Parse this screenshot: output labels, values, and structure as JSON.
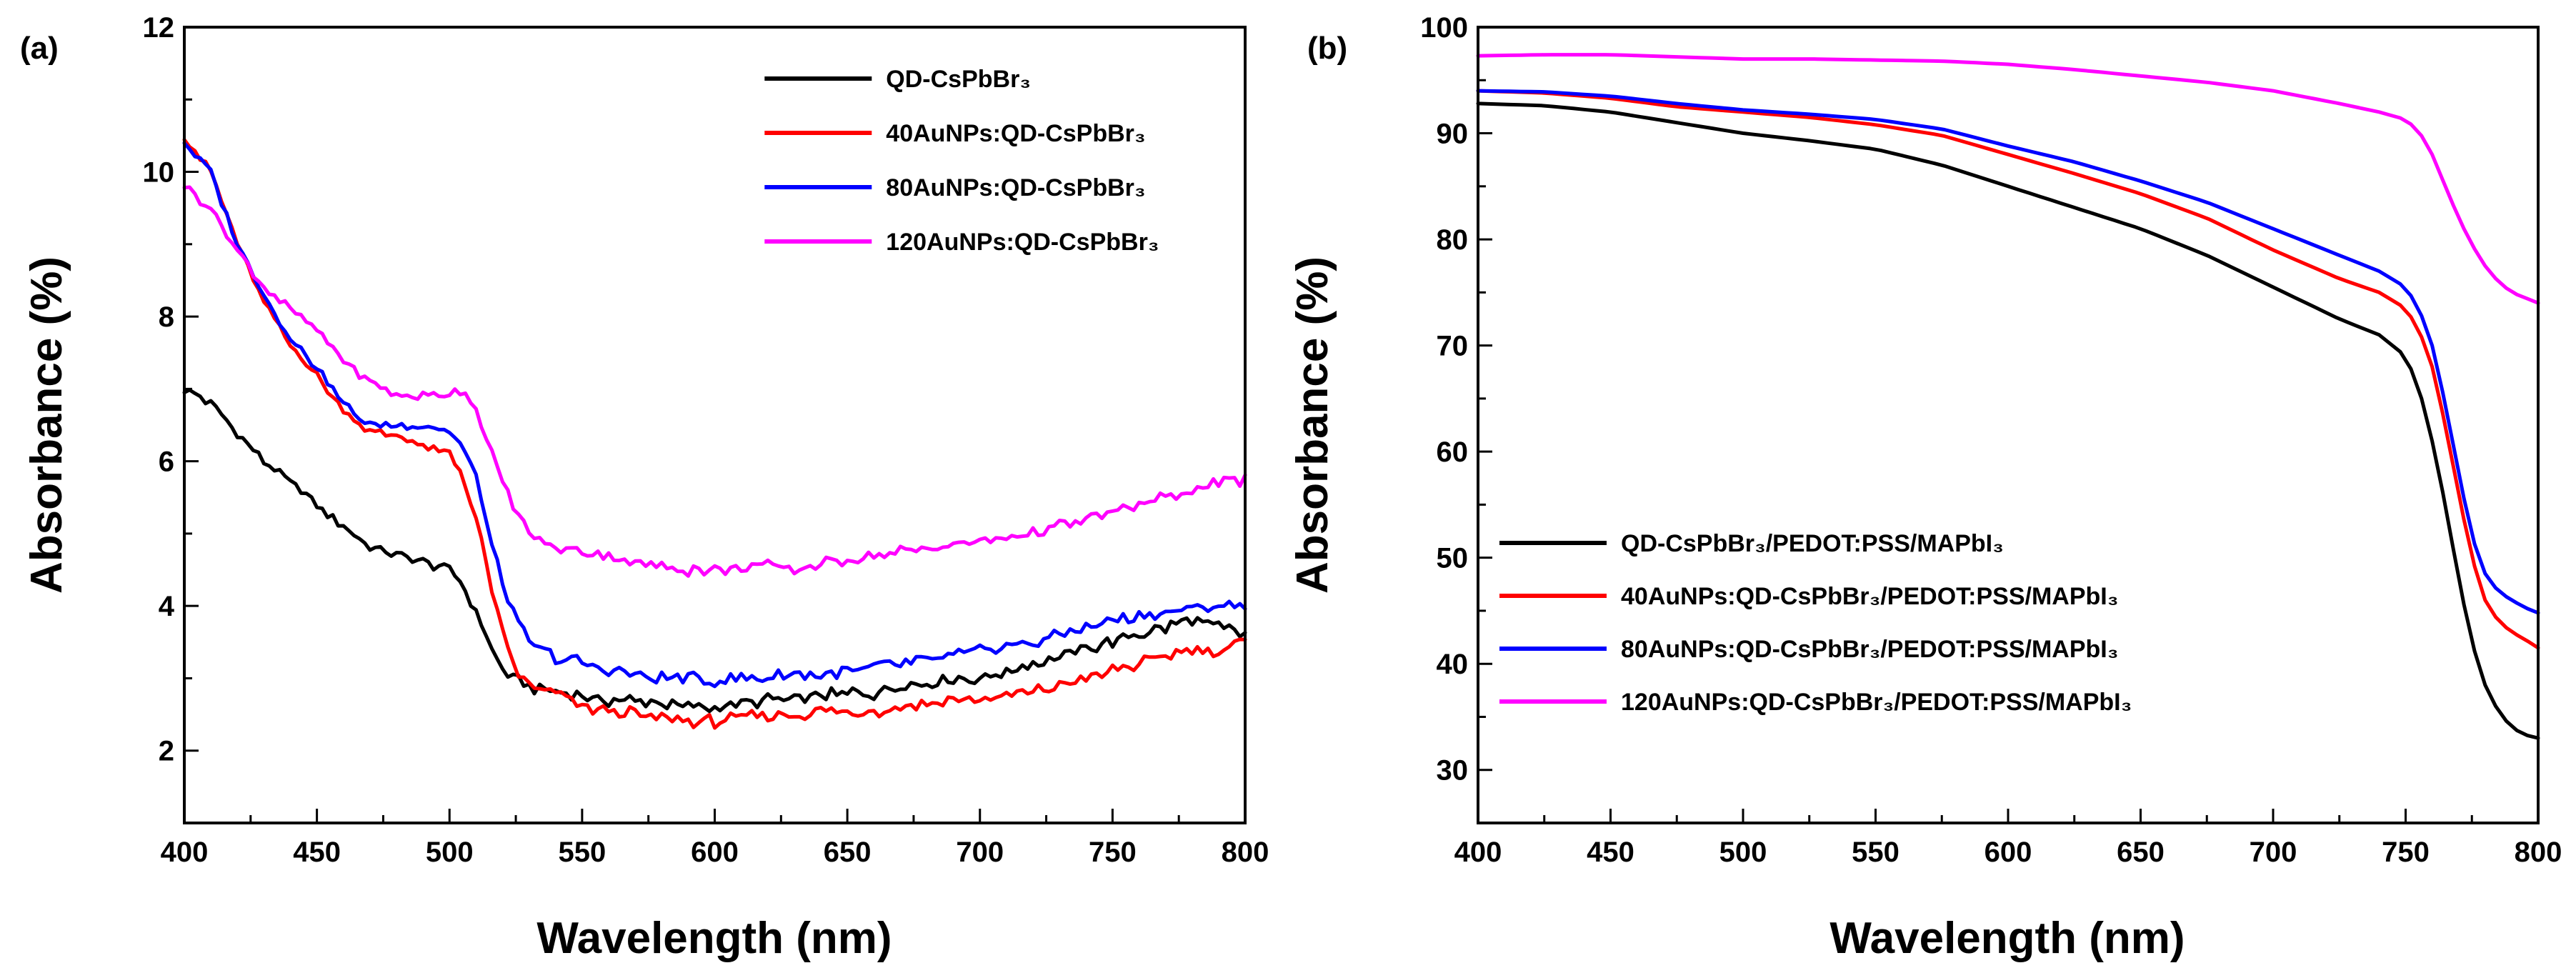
{
  "chart_data": [
    {
      "panel": "(a)",
      "type": "line",
      "xlabel": "Wavelength (nm)",
      "ylabel": "Absorbance (%)",
      "xlim": [
        400,
        800
      ],
      "ylim": [
        1,
        12
      ],
      "xticks": [
        400,
        450,
        500,
        550,
        600,
        650,
        700,
        750,
        800
      ],
      "yticks": [
        2,
        4,
        6,
        8,
        10,
        12
      ],
      "legend_position": "top-right",
      "series": [
        {
          "name": "QD-CsPbBr₃",
          "color": "#000000",
          "x": [
            400,
            410,
            420,
            430,
            440,
            450,
            460,
            470,
            480,
            490,
            500,
            505,
            510,
            515,
            520,
            525,
            530,
            540,
            550,
            560,
            570,
            580,
            590,
            600,
            610,
            620,
            630,
            640,
            650,
            660,
            670,
            680,
            690,
            700,
            710,
            720,
            730,
            740,
            750,
            760,
            770,
            780,
            790,
            800
          ],
          "y": [
            7.0,
            6.8,
            6.4,
            6.0,
            5.7,
            5.4,
            5.1,
            4.8,
            4.7,
            4.6,
            4.5,
            4.3,
            3.9,
            3.5,
            3.1,
            3.0,
            2.9,
            2.8,
            2.75,
            2.7,
            2.7,
            2.65,
            2.6,
            2.6,
            2.65,
            2.7,
            2.7,
            2.75,
            2.8,
            2.8,
            2.9,
            2.95,
            3.0,
            3.0,
            3.1,
            3.2,
            3.3,
            3.4,
            3.5,
            3.6,
            3.7,
            3.8,
            3.7,
            3.6
          ]
        },
        {
          "name": "40AuNPs:QD-CsPbBr₃",
          "color": "#ff0000",
          "x": [
            400,
            410,
            420,
            430,
            440,
            450,
            460,
            470,
            480,
            490,
            500,
            505,
            510,
            515,
            520,
            525,
            530,
            540,
            550,
            560,
            570,
            580,
            590,
            600,
            610,
            620,
            630,
            640,
            650,
            660,
            670,
            680,
            690,
            700,
            710,
            720,
            730,
            740,
            750,
            760,
            770,
            780,
            790,
            800
          ],
          "y": [
            10.5,
            10.0,
            9.0,
            8.2,
            7.6,
            7.2,
            6.7,
            6.4,
            6.35,
            6.2,
            6.1,
            5.8,
            5.2,
            4.4,
            3.6,
            3.1,
            2.9,
            2.8,
            2.6,
            2.55,
            2.5,
            2.45,
            2.4,
            2.4,
            2.45,
            2.5,
            2.5,
            2.55,
            2.5,
            2.55,
            2.6,
            2.65,
            2.7,
            2.7,
            2.75,
            2.8,
            2.9,
            3.0,
            3.1,
            3.2,
            3.3,
            3.4,
            3.4,
            3.5
          ]
        },
        {
          "name": "80AuNPs:QD-CsPbBr₃",
          "color": "#0000ff",
          "x": [
            400,
            410,
            420,
            430,
            440,
            450,
            460,
            470,
            480,
            490,
            500,
            505,
            510,
            515,
            520,
            525,
            530,
            540,
            550,
            560,
            570,
            580,
            590,
            600,
            610,
            620,
            630,
            640,
            650,
            660,
            670,
            680,
            690,
            700,
            710,
            720,
            730,
            740,
            750,
            760,
            770,
            780,
            790,
            800
          ],
          "y": [
            10.4,
            10.0,
            9.0,
            8.3,
            7.7,
            7.3,
            6.8,
            6.5,
            6.5,
            6.5,
            6.4,
            6.2,
            5.8,
            5.0,
            4.3,
            3.8,
            3.5,
            3.3,
            3.2,
            3.1,
            3.05,
            3.0,
            3.0,
            2.95,
            3.0,
            3.0,
            3.05,
            3.05,
            3.1,
            3.15,
            3.2,
            3.25,
            3.3,
            3.4,
            3.45,
            3.5,
            3.6,
            3.7,
            3.8,
            3.85,
            3.9,
            3.95,
            4.0,
            4.0
          ]
        },
        {
          "name": "120AuNPs:QD-CsPbBr₃",
          "color": "#ff00ff",
          "x": [
            400,
            410,
            420,
            430,
            440,
            450,
            460,
            470,
            480,
            490,
            500,
            505,
            510,
            515,
            520,
            525,
            530,
            540,
            550,
            560,
            570,
            580,
            590,
            600,
            610,
            620,
            630,
            640,
            650,
            660,
            670,
            680,
            690,
            700,
            710,
            720,
            730,
            740,
            750,
            760,
            770,
            780,
            790,
            800
          ],
          "y": [
            9.8,
            9.5,
            8.9,
            8.4,
            8.1,
            7.8,
            7.4,
            7.1,
            6.9,
            6.9,
            6.95,
            7.0,
            6.7,
            6.2,
            5.7,
            5.3,
            5.0,
            4.8,
            4.75,
            4.7,
            4.6,
            4.55,
            4.5,
            4.5,
            4.55,
            4.55,
            4.5,
            4.6,
            4.65,
            4.7,
            4.75,
            4.8,
            4.85,
            4.9,
            4.95,
            5.0,
            5.1,
            5.2,
            5.3,
            5.4,
            5.5,
            5.6,
            5.7,
            5.75
          ]
        }
      ]
    },
    {
      "panel": "(b)",
      "type": "line",
      "xlabel": "Wavelength (nm)",
      "ylabel": "Absorbance (%)",
      "xlim": [
        400,
        800
      ],
      "ylim": [
        25,
        100
      ],
      "xticks": [
        400,
        450,
        500,
        550,
        600,
        650,
        700,
        750,
        800
      ],
      "yticks": [
        30,
        40,
        50,
        60,
        70,
        80,
        90,
        100
      ],
      "legend_position": "bottom-left",
      "series": [
        {
          "name": "QD-CsPbBr₃/PEDOT:PSS/MAPbI₃",
          "color": "#000000",
          "x": [
            400,
            425,
            450,
            475,
            500,
            525,
            550,
            575,
            600,
            625,
            650,
            675,
            700,
            725,
            740,
            750,
            755,
            760,
            765,
            770,
            775,
            780,
            785,
            790,
            795,
            800
          ],
          "y": [
            92.8,
            92.6,
            92.0,
            91.0,
            90.0,
            89.3,
            88.5,
            87.0,
            85.0,
            83.0,
            81.0,
            78.5,
            75.5,
            72.5,
            71.0,
            69.0,
            66.0,
            61.0,
            55.0,
            48.0,
            42.0,
            38.0,
            35.5,
            34.0,
            33.3,
            33.0
          ]
        },
        {
          "name": "40AuNPs:QD-CsPbBr₃/PEDOT:PSS/MAPbI₃",
          "color": "#ff0000",
          "x": [
            400,
            425,
            450,
            475,
            500,
            525,
            550,
            575,
            600,
            625,
            650,
            675,
            700,
            725,
            740,
            750,
            755,
            760,
            765,
            770,
            775,
            780,
            785,
            790,
            795,
            800
          ],
          "y": [
            94.0,
            93.8,
            93.3,
            92.5,
            92.0,
            91.5,
            90.8,
            89.8,
            88.0,
            86.2,
            84.3,
            82.0,
            79.0,
            76.3,
            75.0,
            73.5,
            71.5,
            68.0,
            62.5,
            56.0,
            50.0,
            46.0,
            44.0,
            43.0,
            42.3,
            41.5
          ]
        },
        {
          "name": "80AuNPs:QD-CsPbBr₃/PEDOT:PSS/MAPbI₃",
          "color": "#0000ff",
          "x": [
            400,
            425,
            450,
            475,
            500,
            525,
            550,
            575,
            600,
            625,
            650,
            675,
            700,
            725,
            740,
            750,
            755,
            760,
            765,
            770,
            775,
            780,
            785,
            790,
            795,
            800
          ],
          "y": [
            94.0,
            93.9,
            93.5,
            92.8,
            92.2,
            91.8,
            91.3,
            90.4,
            88.8,
            87.3,
            85.5,
            83.5,
            81.0,
            78.5,
            77.0,
            75.5,
            73.5,
            70.0,
            64.5,
            58.0,
            52.0,
            48.5,
            46.8,
            46.0,
            45.3,
            44.8
          ]
        },
        {
          "name": "120AuNPs:QD-CsPbBr₃/PEDOT:PSS/MAPbI₃",
          "color": "#ff00ff",
          "x": [
            400,
            425,
            450,
            475,
            500,
            525,
            550,
            575,
            600,
            625,
            650,
            675,
            700,
            725,
            740,
            750,
            755,
            760,
            765,
            770,
            775,
            780,
            785,
            790,
            795,
            800
          ],
          "y": [
            97.3,
            97.4,
            97.4,
            97.2,
            97.0,
            97.0,
            96.9,
            96.8,
            96.5,
            96.0,
            95.4,
            94.8,
            94.0,
            92.8,
            92.0,
            91.3,
            90.2,
            88.0,
            85.0,
            82.0,
            79.5,
            77.5,
            76.0,
            75.0,
            74.5,
            74.0
          ]
        }
      ]
    }
  ]
}
